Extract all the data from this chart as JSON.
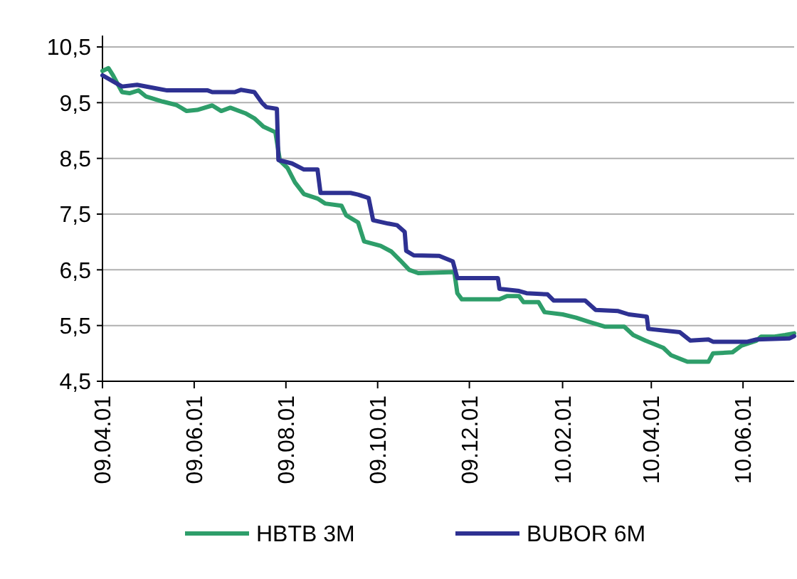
{
  "chart_data": {
    "type": "line",
    "xlim": [
      "2009-04-01",
      "2010-07-05"
    ],
    "xticks": [
      {
        "value": "2009-04-01",
        "label": "09.04.01"
      },
      {
        "value": "2009-06-01",
        "label": "09.06.01"
      },
      {
        "value": "2009-08-01",
        "label": "09.08.01"
      },
      {
        "value": "2009-10-01",
        "label": "09.10.01"
      },
      {
        "value": "2009-12-01",
        "label": "09.12.01"
      },
      {
        "value": "2010-02-01",
        "label": "10.02.01"
      },
      {
        "value": "2010-04-01",
        "label": "10.04.01"
      },
      {
        "value": "2010-06-01",
        "label": "10.06.01"
      }
    ],
    "ylim": [
      4.5,
      10.5
    ],
    "yticks": [
      {
        "value": 4.5,
        "label": "4,5"
      },
      {
        "value": 5.5,
        "label": "5,5"
      },
      {
        "value": 6.5,
        "label": "6,5"
      },
      {
        "value": 7.5,
        "label": "7,5"
      },
      {
        "value": 8.5,
        "label": "8,5"
      },
      {
        "value": 9.5,
        "label": "9,5"
      },
      {
        "value": 10.5,
        "label": "10,5"
      }
    ],
    "grid": "y",
    "legend": "bottom",
    "marker": "none",
    "line_style": "solid",
    "series": [
      {
        "name": "HBTB 3M",
        "color": "#2e9e6a",
        "x": [
          "2009-04-01",
          "2009-04-05",
          "2009-04-08",
          "2009-04-14",
          "2009-04-19",
          "2009-04-25",
          "2009-04-30",
          "2009-05-11",
          "2009-05-20",
          "2009-05-27",
          "2009-06-03",
          "2009-06-13",
          "2009-06-19",
          "2009-06-25",
          "2009-07-05",
          "2009-07-11",
          "2009-07-17",
          "2009-07-25",
          "2009-07-28",
          "2009-08-02",
          "2009-08-07",
          "2009-08-13",
          "2009-08-22",
          "2009-08-27",
          "2009-09-07",
          "2009-09-10",
          "2009-09-18",
          "2009-09-22",
          "2009-10-03",
          "2009-10-10",
          "2009-10-16",
          "2009-10-22",
          "2009-10-28",
          "2009-11-10",
          "2009-11-21",
          "2009-11-23",
          "2009-11-26",
          "2009-12-21",
          "2009-12-26",
          "2010-01-03",
          "2010-01-06",
          "2010-01-16",
          "2010-01-20",
          "2010-02-01",
          "2010-02-10",
          "2010-02-18",
          "2010-03-01",
          "2010-03-14",
          "2010-03-20",
          "2010-03-28",
          "2010-04-09",
          "2010-04-14",
          "2010-04-25",
          "2010-05-09",
          "2010-05-12",
          "2010-05-25",
          "2010-05-31",
          "2010-06-10",
          "2010-06-13",
          "2010-06-22",
          "2010-06-29",
          "2010-07-05"
        ],
        "values": [
          10.07,
          10.12,
          9.99,
          9.69,
          9.67,
          9.72,
          9.61,
          9.52,
          9.46,
          9.35,
          9.37,
          9.45,
          9.35,
          9.41,
          9.31,
          9.22,
          9.07,
          8.97,
          8.46,
          8.33,
          8.07,
          7.86,
          7.78,
          7.69,
          7.65,
          7.48,
          7.35,
          7.01,
          6.93,
          6.83,
          6.67,
          6.5,
          6.44,
          6.45,
          6.46,
          6.08,
          5.97,
          5.97,
          6.03,
          6.03,
          5.92,
          5.92,
          5.74,
          5.7,
          5.64,
          5.57,
          5.48,
          5.48,
          5.33,
          5.23,
          5.1,
          4.97,
          4.85,
          4.85,
          5.0,
          5.02,
          5.14,
          5.23,
          5.3,
          5.3,
          5.33,
          5.36
        ]
      },
      {
        "name": "BUBOR 6M",
        "color": "#2e3192",
        "x": [
          "2009-04-01",
          "2009-04-14",
          "2009-04-24",
          "2009-05-06",
          "2009-05-14",
          "2009-06-10",
          "2009-06-13",
          "2009-06-28",
          "2009-07-02",
          "2009-07-11",
          "2009-07-16",
          "2009-07-19",
          "2009-07-26",
          "2009-07-27",
          "2009-08-05",
          "2009-08-13",
          "2009-08-22",
          "2009-08-24",
          "2009-09-13",
          "2009-09-18",
          "2009-09-25",
          "2009-09-28",
          "2009-10-08",
          "2009-10-14",
          "2009-10-19",
          "2009-10-20",
          "2009-10-25",
          "2009-11-11",
          "2009-11-20",
          "2009-11-23",
          "2009-12-20",
          "2009-12-21",
          "2010-01-03",
          "2010-01-08",
          "2010-01-22",
          "2010-01-26",
          "2010-02-16",
          "2010-02-23",
          "2010-03-10",
          "2010-03-17",
          "2010-03-29",
          "2010-03-30",
          "2010-04-20",
          "2010-04-27",
          "2010-05-09",
          "2010-05-12",
          "2010-06-04",
          "2010-06-10",
          "2010-07-02",
          "2010-07-05"
        ],
        "values": [
          9.99,
          9.79,
          9.82,
          9.76,
          9.72,
          9.72,
          9.69,
          9.69,
          9.73,
          9.69,
          9.5,
          9.42,
          9.39,
          8.47,
          8.41,
          8.3,
          8.3,
          7.88,
          7.88,
          7.85,
          7.79,
          7.39,
          7.33,
          7.3,
          7.18,
          6.84,
          6.76,
          6.75,
          6.65,
          6.35,
          6.35,
          6.16,
          6.12,
          6.08,
          6.06,
          5.95,
          5.95,
          5.78,
          5.76,
          5.7,
          5.66,
          5.44,
          5.38,
          5.23,
          5.25,
          5.21,
          5.21,
          5.25,
          5.27,
          5.31
        ]
      }
    ]
  }
}
